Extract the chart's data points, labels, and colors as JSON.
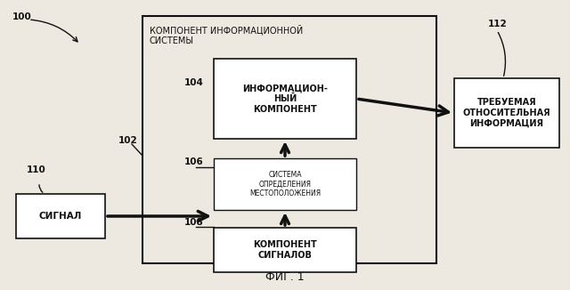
{
  "bg_color": "#ede9e1",
  "fig_caption": "ФИГ. 1",
  "label_100": "100",
  "label_102": "102",
  "label_104": "104",
  "label_106": "106",
  "label_108": "108",
  "label_110": "110",
  "label_112": "112",
  "box_signal_text": "СИГНАЛ",
  "box_info_component_text": "ИНФОРМАЦИОН-\nНЫЙ\nКОМПОНЕНТ",
  "box_location_text": "СИСТЕМА\nОПРЕДЕЛЕНИЯ\nМЕСТОПОЛОЖЕНИЯ",
  "box_signals_component_text": "КОМПОНЕНТ\nСИГНАЛОВ",
  "outer_box_title": "КОМПОНЕНТ ИНФОРМАЦИОННОЙ\nСИСТЕМЫ",
  "box_required_info_text": "ТРЕБУЕМАЯ\nОТНОСИТЕЛЬНАЯ\nИНФОРМАЦИЯ",
  "line_color": "#111111",
  "box_edge_color": "#111111"
}
